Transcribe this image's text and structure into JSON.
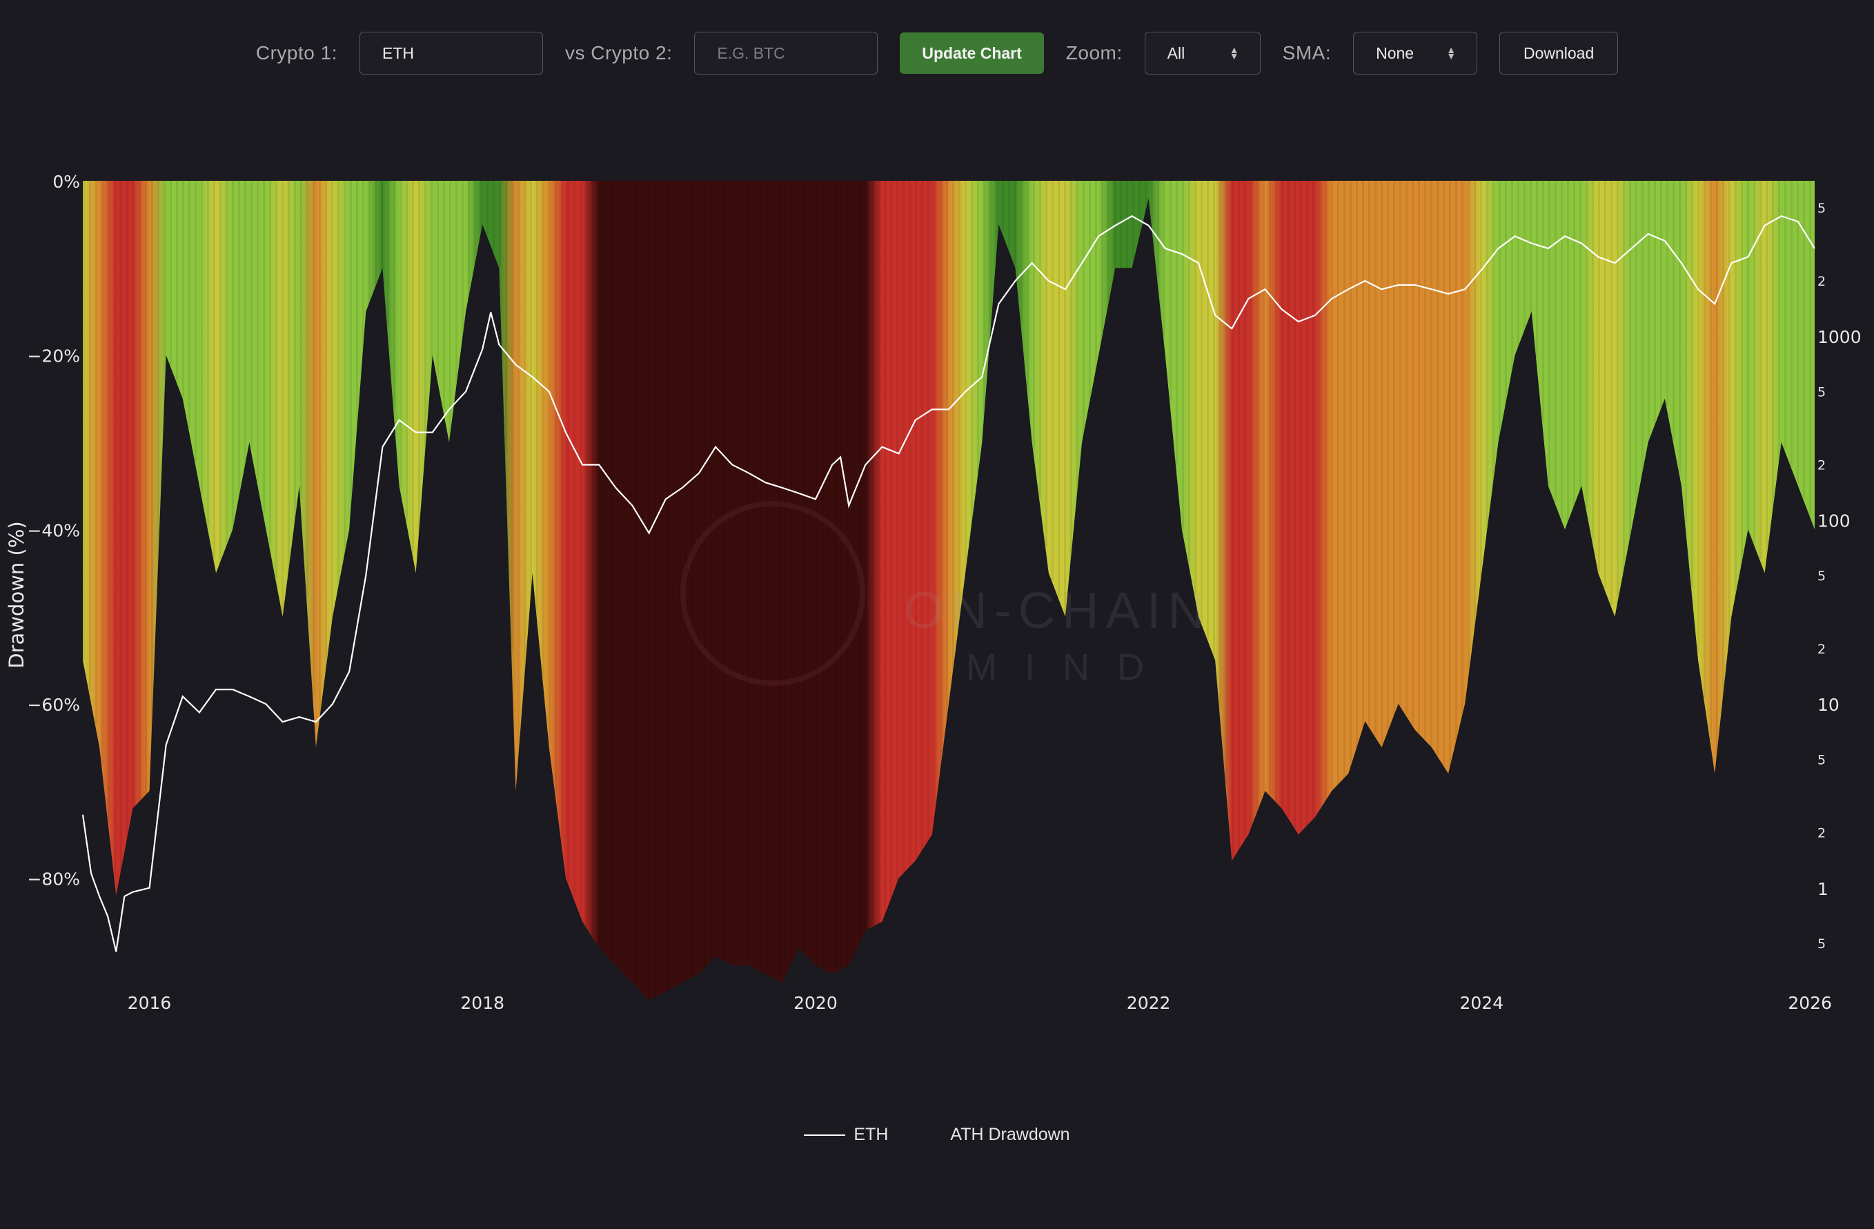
{
  "controls": {
    "crypto1_label": "Crypto 1:",
    "crypto1_value": "ETH",
    "crypto2_label": "vs Crypto 2:",
    "crypto2_placeholder": "E.G. BTC",
    "update_label": "Update Chart",
    "zoom_label": "Zoom:",
    "zoom_value": "All",
    "sma_label": "SMA:",
    "sma_value": "None",
    "download_label": "Download"
  },
  "watermark": {
    "line1": "ON-CHAIN",
    "line2": "MIND"
  },
  "colors": {
    "background": "#1a1a20",
    "price_line": "#ffffff",
    "update_button": "#3c7a34",
    "grade_green": "#8cc63e",
    "grade_dark_green": "#3f8a26",
    "grade_yellow": "#c9c83a",
    "grade_orange": "#d98a2e",
    "grade_red": "#c8302a",
    "grade_dark_red": "#3a0c0c"
  },
  "chart_data": {
    "type": "area",
    "ylabel": "Drawdown (%)",
    "y_ticks": [
      "0%",
      "−20%",
      "−40%",
      "−60%",
      "−80%"
    ],
    "ylim": [
      -95,
      0
    ],
    "x_ticks": [
      "2016",
      "2018",
      "2020",
      "2022",
      "2024",
      "2026"
    ],
    "xlim": [
      2015.6,
      2026.0
    ],
    "y2_scale": "log",
    "y2_major_ticks": [
      "1",
      "10",
      "100",
      "1000"
    ],
    "y2_minor_ticks": [
      "5",
      "2",
      "5",
      "2",
      "5",
      "2",
      "5",
      "2",
      "5",
      "2",
      "5"
    ],
    "legend": [
      "ETH",
      "ATH Drawdown"
    ],
    "legend_position": "bottom-center",
    "series": [
      {
        "name": "ATH Drawdown",
        "x": [
          2015.6,
          2015.7,
          2015.8,
          2015.9,
          2016.0,
          2016.1,
          2016.2,
          2016.3,
          2016.4,
          2016.5,
          2016.6,
          2016.7,
          2016.8,
          2016.9,
          2017.0,
          2017.1,
          2017.2,
          2017.3,
          2017.4,
          2017.5,
          2017.6,
          2017.7,
          2017.8,
          2017.9,
          2018.0,
          2018.1,
          2018.2,
          2018.3,
          2018.4,
          2018.5,
          2018.6,
          2018.7,
          2018.8,
          2018.9,
          2019.0,
          2019.1,
          2019.2,
          2019.3,
          2019.4,
          2019.5,
          2019.6,
          2019.7,
          2019.8,
          2019.9,
          2020.0,
          2020.1,
          2020.2,
          2020.3,
          2020.4,
          2020.5,
          2020.6,
          2020.7,
          2020.8,
          2020.9,
          2021.0,
          2021.1,
          2021.2,
          2021.3,
          2021.4,
          2021.5,
          2021.6,
          2021.7,
          2021.8,
          2021.9,
          2022.0,
          2022.1,
          2022.2,
          2022.3,
          2022.4,
          2022.5,
          2022.6,
          2022.7,
          2022.8,
          2022.9,
          2023.0,
          2023.1,
          2023.2,
          2023.3,
          2023.4,
          2023.5,
          2023.6,
          2023.7,
          2023.8,
          2023.9,
          2024.0,
          2024.1,
          2024.2,
          2024.3,
          2024.4,
          2024.5,
          2024.6,
          2024.7,
          2024.8,
          2024.9,
          2025.0,
          2025.1,
          2025.2,
          2025.3,
          2025.4,
          2025.5,
          2025.6,
          2025.7,
          2025.8,
          2025.9,
          2026.0
        ],
        "values": [
          -55,
          -65,
          -82,
          -72,
          -70,
          -20,
          -25,
          -35,
          -45,
          -40,
          -30,
          -40,
          -50,
          -35,
          -65,
          -50,
          -40,
          -15,
          -10,
          -35,
          -45,
          -20,
          -30,
          -15,
          -5,
          -10,
          -70,
          -45,
          -65,
          -80,
          -85,
          -88,
          -90,
          -92,
          -94,
          -93,
          -92,
          -91,
          -89,
          -90,
          -90,
          -91,
          -92,
          -88,
          -90,
          -91,
          -90,
          -86,
          -85,
          -80,
          -78,
          -75,
          -60,
          -45,
          -30,
          -5,
          -10,
          -30,
          -45,
          -50,
          -30,
          -20,
          -10,
          -10,
          -2,
          -20,
          -40,
          -50,
          -55,
          -78,
          -75,
          -70,
          -72,
          -75,
          -73,
          -70,
          -68,
          -62,
          -65,
          -60,
          -63,
          -65,
          -68,
          -60,
          -45,
          -30,
          -20,
          -15,
          -35,
          -40,
          -35,
          -45,
          -50,
          -40,
          -30,
          -25,
          -35,
          -55,
          -68,
          -50,
          -40,
          -45,
          -30,
          -35,
          -40
        ]
      },
      {
        "name": "ETH",
        "x": [
          2015.6,
          2015.65,
          2015.7,
          2015.75,
          2015.8,
          2015.85,
          2015.9,
          2016.0,
          2016.1,
          2016.2,
          2016.3,
          2016.4,
          2016.5,
          2016.6,
          2016.7,
          2016.8,
          2016.9,
          2017.0,
          2017.1,
          2017.2,
          2017.3,
          2017.4,
          2017.5,
          2017.6,
          2017.7,
          2017.8,
          2017.9,
          2018.0,
          2018.05,
          2018.1,
          2018.2,
          2018.3,
          2018.4,
          2018.5,
          2018.6,
          2018.7,
          2018.8,
          2018.9,
          2019.0,
          2019.1,
          2019.2,
          2019.3,
          2019.4,
          2019.5,
          2019.6,
          2019.7,
          2019.8,
          2019.9,
          2020.0,
          2020.1,
          2020.15,
          2020.2,
          2020.3,
          2020.4,
          2020.5,
          2020.6,
          2020.7,
          2020.8,
          2020.9,
          2021.0,
          2021.1,
          2021.2,
          2021.3,
          2021.4,
          2021.5,
          2021.6,
          2021.7,
          2021.8,
          2021.9,
          2022.0,
          2022.1,
          2022.2,
          2022.3,
          2022.4,
          2022.5,
          2022.6,
          2022.7,
          2022.8,
          2022.9,
          2023.0,
          2023.1,
          2023.2,
          2023.3,
          2023.4,
          2023.5,
          2023.6,
          2023.7,
          2023.8,
          2023.9,
          2024.0,
          2024.1,
          2024.2,
          2024.3,
          2024.4,
          2024.5,
          2024.6,
          2024.7,
          2024.8,
          2024.9,
          2025.0,
          2025.1,
          2025.2,
          2025.3,
          2025.4,
          2025.5,
          2025.6,
          2025.7,
          2025.8,
          2025.9,
          2026.0
        ],
        "values": [
          2.5,
          1.2,
          0.9,
          0.7,
          0.45,
          0.9,
          0.95,
          1.0,
          6,
          11,
          9,
          12,
          12,
          11,
          10,
          8,
          8.5,
          8,
          10,
          15,
          50,
          250,
          350,
          300,
          300,
          400,
          500,
          850,
          1350,
          900,
          700,
          600,
          500,
          300,
          200,
          200,
          150,
          120,
          85,
          130,
          150,
          180,
          250,
          200,
          180,
          160,
          150,
          140,
          130,
          200,
          220,
          120,
          200,
          250,
          230,
          350,
          400,
          400,
          500,
          600,
          1500,
          2000,
          2500,
          2000,
          1800,
          2500,
          3500,
          4000,
          4500,
          4000,
          3000,
          2800,
          2500,
          1300,
          1100,
          1600,
          1800,
          1400,
          1200,
          1300,
          1600,
          1800,
          2000,
          1800,
          1900,
          1900,
          1800,
          1700,
          1800,
          2300,
          3000,
          3500,
          3200,
          3000,
          3500,
          3200,
          2700,
          2500,
          3000,
          3600,
          3300,
          2500,
          1800,
          1500,
          2500,
          2700,
          4000,
          4500,
          4200,
          3000
        ]
      }
    ]
  }
}
